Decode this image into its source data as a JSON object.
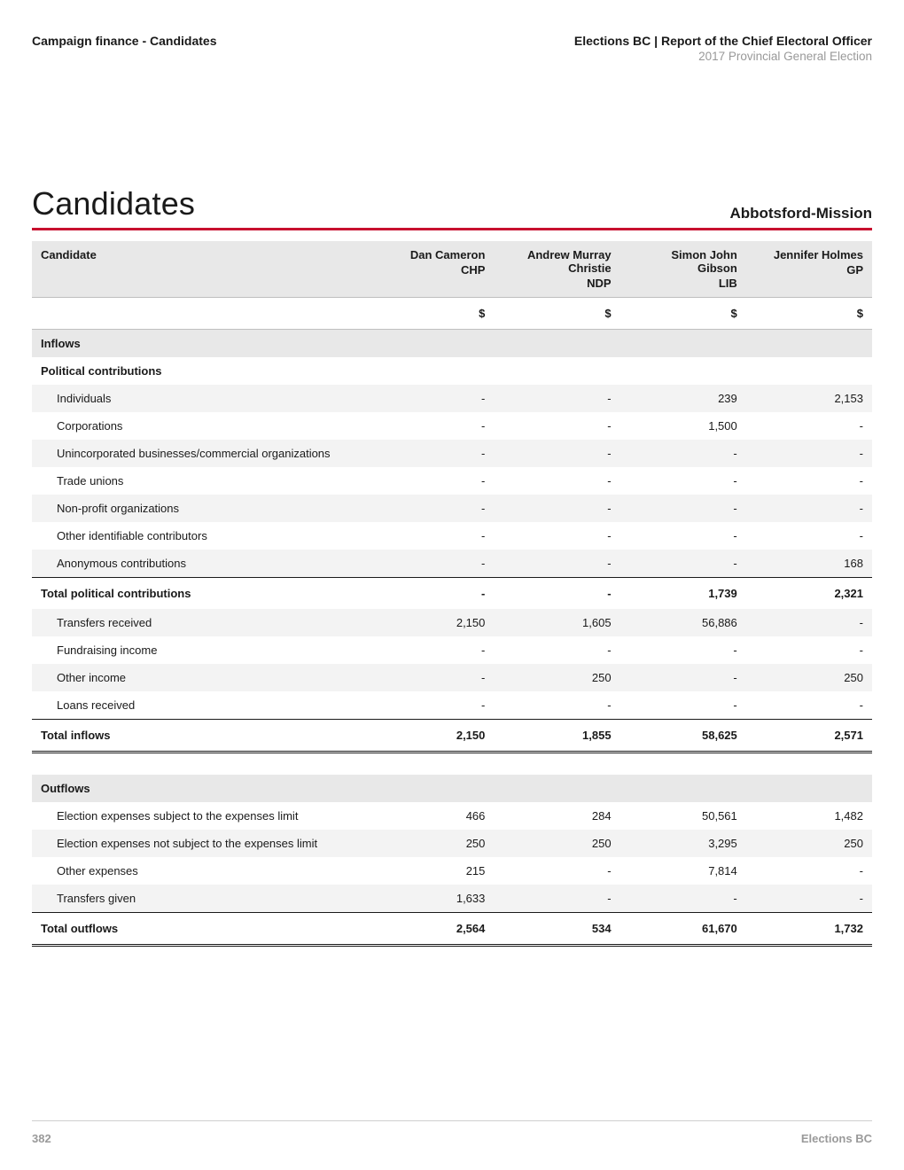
{
  "header": {
    "section": "Campaign finance - Candidates",
    "org_line": "Elections BC | Report of the Chief Electoral Officer",
    "sub_line": "2017 Provincial General Election"
  },
  "title": "Candidates",
  "district": "Abbotsford-Mission",
  "columns": [
    {
      "name": "Dan Cameron",
      "party": "CHP"
    },
    {
      "name": "Andrew Murray Christie",
      "party": "NDP"
    },
    {
      "name": "Simon John Gibson",
      "party": "LIB"
    },
    {
      "name": "Jennifer Holmes",
      "party": "GP"
    }
  ],
  "currency": "$",
  "sections": {
    "inflows_label": "Inflows",
    "contrib_label": "Political contributions",
    "contrib_rows": [
      {
        "label": "Individuals",
        "v": [
          "-",
          "-",
          "239",
          "2,153"
        ]
      },
      {
        "label": "Corporations",
        "v": [
          "-",
          "-",
          "1,500",
          "-"
        ]
      },
      {
        "label": "Unincorporated businesses/commercial organizations",
        "v": [
          "-",
          "-",
          "-",
          "-"
        ]
      },
      {
        "label": "Trade unions",
        "v": [
          "-",
          "-",
          "-",
          "-"
        ]
      },
      {
        "label": "Non-profit organizations",
        "v": [
          "-",
          "-",
          "-",
          "-"
        ]
      },
      {
        "label": "Other identifiable contributors",
        "v": [
          "-",
          "-",
          "-",
          "-"
        ]
      },
      {
        "label": "Anonymous contributions",
        "v": [
          "-",
          "-",
          "-",
          "168"
        ]
      }
    ],
    "contrib_total": {
      "label": "Total political contributions",
      "v": [
        "-",
        "-",
        "1,739",
        "2,321"
      ]
    },
    "other_inflow_rows": [
      {
        "label": "Transfers received",
        "v": [
          "2,150",
          "1,605",
          "56,886",
          "-"
        ]
      },
      {
        "label": "Fundraising income",
        "v": [
          "-",
          "-",
          "-",
          "-"
        ]
      },
      {
        "label": "Other income",
        "v": [
          "-",
          "250",
          "-",
          "250"
        ]
      },
      {
        "label": "Loans received",
        "v": [
          "-",
          "-",
          "-",
          "-"
        ]
      }
    ],
    "inflows_total": {
      "label": "Total inflows",
      "v": [
        "2,150",
        "1,855",
        "58,625",
        "2,571"
      ]
    },
    "outflows_label": "Outflows",
    "outflow_rows": [
      {
        "label": "Election expenses subject to the expenses limit",
        "v": [
          "466",
          "284",
          "50,561",
          "1,482"
        ]
      },
      {
        "label": "Election expenses not subject to the expenses limit",
        "v": [
          "250",
          "250",
          "3,295",
          "250"
        ]
      },
      {
        "label": "Other expenses",
        "v": [
          "215",
          "-",
          "7,814",
          "-"
        ]
      },
      {
        "label": "Transfers given",
        "v": [
          "1,633",
          "-",
          "-",
          "-"
        ]
      }
    ],
    "outflows_total": {
      "label": "Total outflows",
      "v": [
        "2,564",
        "534",
        "61,670",
        "1,732"
      ]
    }
  },
  "footer": {
    "page": "382",
    "org": "Elections BC"
  },
  "style": {
    "accent": "#c8102e",
    "shade_bg": "#f3f3f3",
    "header_bg": "#e8e8e8",
    "muted": "#999999",
    "footer_muted": "#9a9a9a"
  }
}
